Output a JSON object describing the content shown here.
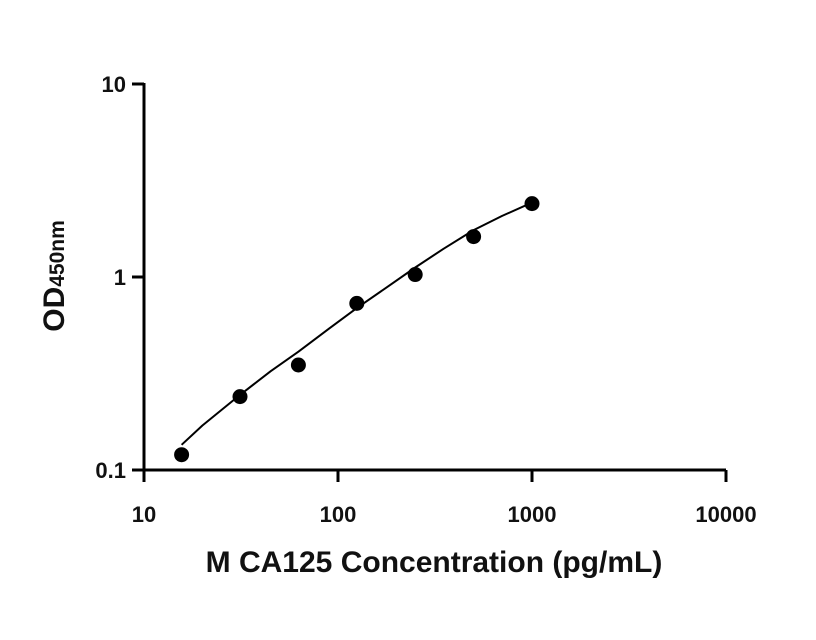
{
  "chart_data": {
    "type": "scatter",
    "title": "",
    "xlabel": "M CA125 Concentration (pg/mL)",
    "ylabel": "OD",
    "ylabel_subscript": "450nm",
    "xscale": "log",
    "yscale": "log",
    "xlim": [
      10,
      10000
    ],
    "ylim": [
      0.1,
      10
    ],
    "x_ticks": [
      10,
      100,
      1000,
      10000
    ],
    "x_tick_labels": [
      "10",
      "100",
      "1000",
      "10000"
    ],
    "y_ticks": [
      0.1,
      1,
      10
    ],
    "y_tick_labels": [
      "0.1",
      "1",
      "10"
    ],
    "grid": false,
    "legend": "none",
    "points": {
      "x": [
        15.625,
        31.25,
        62.5,
        125,
        250,
        500,
        1000
      ],
      "y": [
        0.12,
        0.24,
        0.35,
        0.73,
        1.03,
        1.62,
        2.4
      ]
    },
    "fit_curve": {
      "x": [
        15.625,
        20,
        31.25,
        45,
        62.5,
        90,
        125,
        180,
        250,
        350,
        500,
        700,
        1000
      ],
      "y": [
        0.135,
        0.17,
        0.245,
        0.325,
        0.41,
        0.54,
        0.69,
        0.89,
        1.12,
        1.4,
        1.75,
        2.07,
        2.43
      ]
    },
    "colors": {
      "points": "#000000",
      "curve": "#000000",
      "axes": "#000000"
    }
  }
}
